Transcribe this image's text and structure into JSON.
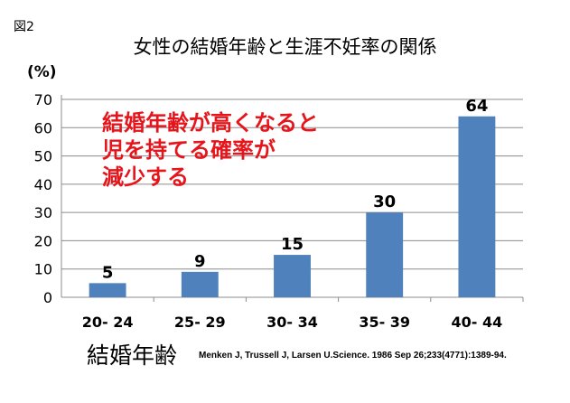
{
  "figure_label": "図2",
  "chart_data": {
    "type": "bar",
    "title": "女性の結婚年齢と生涯不妊率の関係",
    "ylabel": "(%)",
    "xlabel": "結婚年齢",
    "categories": [
      "20- 24",
      "25- 29",
      "30- 34",
      "35- 39",
      "40- 44"
    ],
    "values": [
      5,
      9,
      15,
      30,
      64
    ],
    "data_labels": [
      "5",
      "9",
      "15",
      "30",
      "64"
    ],
    "ylim": [
      0,
      70
    ],
    "yticks": [
      "0",
      "10",
      "20",
      "30",
      "40",
      "50",
      "60",
      "70"
    ],
    "grid": true,
    "bar_color": "#4f81bd",
    "annotation_lines": [
      "結婚年齢が高くなると",
      "児を持てる確率が",
      "減少する"
    ],
    "annotation_color": "#e6141b"
  },
  "citation": "Menken J, Trussell J, Larsen U.Science. 1986 Sep 26;233(4771):1389-94."
}
